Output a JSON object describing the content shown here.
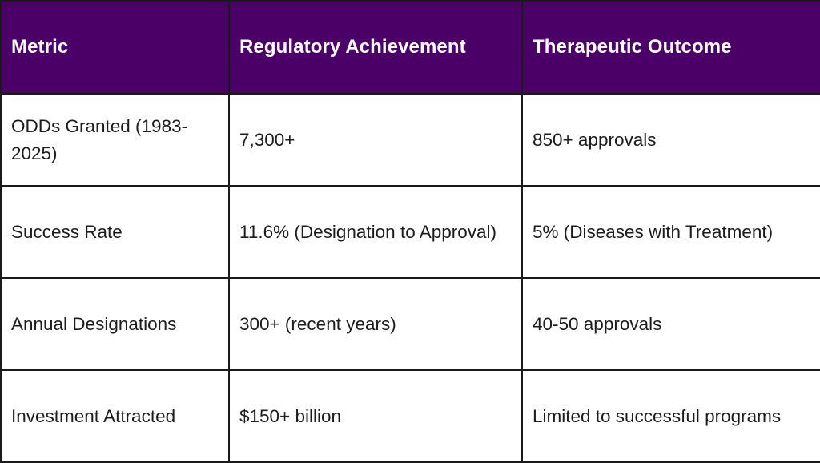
{
  "table": {
    "headers": [
      "Metric",
      "Regulatory Achievement",
      "Therapeutic Outcome"
    ],
    "rows": [
      [
        "ODDs Granted (1983-2025)",
        "7,300+",
        "850+ approvals"
      ],
      [
        "Success Rate",
        "11.6% (Designation to Approval)",
        "5% (Diseases with Treatment)"
      ],
      [
        "Annual Designations",
        "300+ (recent years)",
        "40-50 approvals"
      ],
      [
        "Investment Attracted",
        "$150+ billion",
        "Limited to successful programs"
      ]
    ]
  },
  "colors": {
    "header_bg": "#4b0068",
    "header_text": "#ffffff",
    "border": "#1a1a1a",
    "cell_text": "#1c1c1c"
  }
}
